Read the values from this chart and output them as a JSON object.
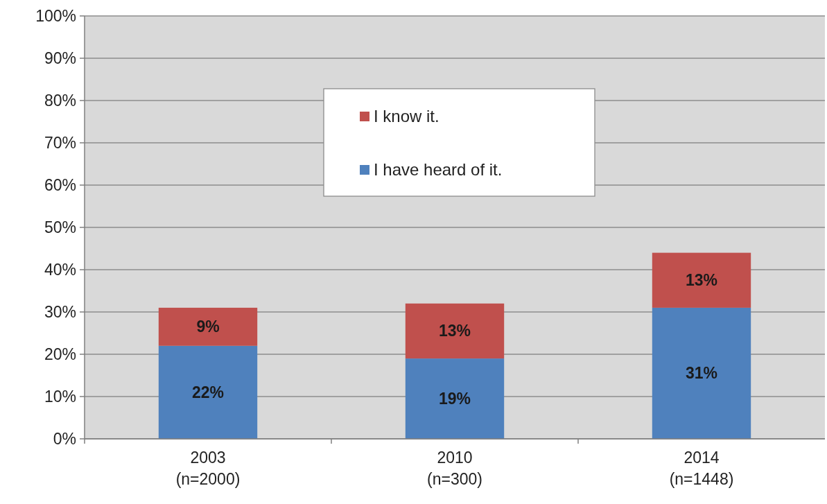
{
  "chart_data": {
    "type": "bar",
    "stacked": true,
    "categories": [
      "2003\n(n=2000)",
      "2010\n(n=300)",
      "2014\n(n=1448)"
    ],
    "series": [
      {
        "name": "I have heard of it.",
        "color": "#4f81bd",
        "values": [
          22,
          19,
          31
        ],
        "value_labels": [
          "22%",
          "19%",
          "31%"
        ]
      },
      {
        "name": "I know it.",
        "color": "#c0504d",
        "values": [
          9,
          13,
          13
        ],
        "value_labels": [
          "9%",
          "13%",
          "13%"
        ]
      }
    ],
    "ylim": [
      0,
      100
    ],
    "yticks": [
      {
        "value": 0,
        "label": "0%"
      },
      {
        "value": 10,
        "label": "10%"
      },
      {
        "value": 20,
        "label": "20%"
      },
      {
        "value": 30,
        "label": "30%"
      },
      {
        "value": 40,
        "label": "40%"
      },
      {
        "value": 50,
        "label": "50%"
      },
      {
        "value": 60,
        "label": "60%"
      },
      {
        "value": 70,
        "label": "70%"
      },
      {
        "value": 80,
        "label": "80%"
      },
      {
        "value": 90,
        "label": "90%"
      },
      {
        "value": 100,
        "label": "100%"
      }
    ],
    "grid": "y",
    "legend": "top"
  }
}
